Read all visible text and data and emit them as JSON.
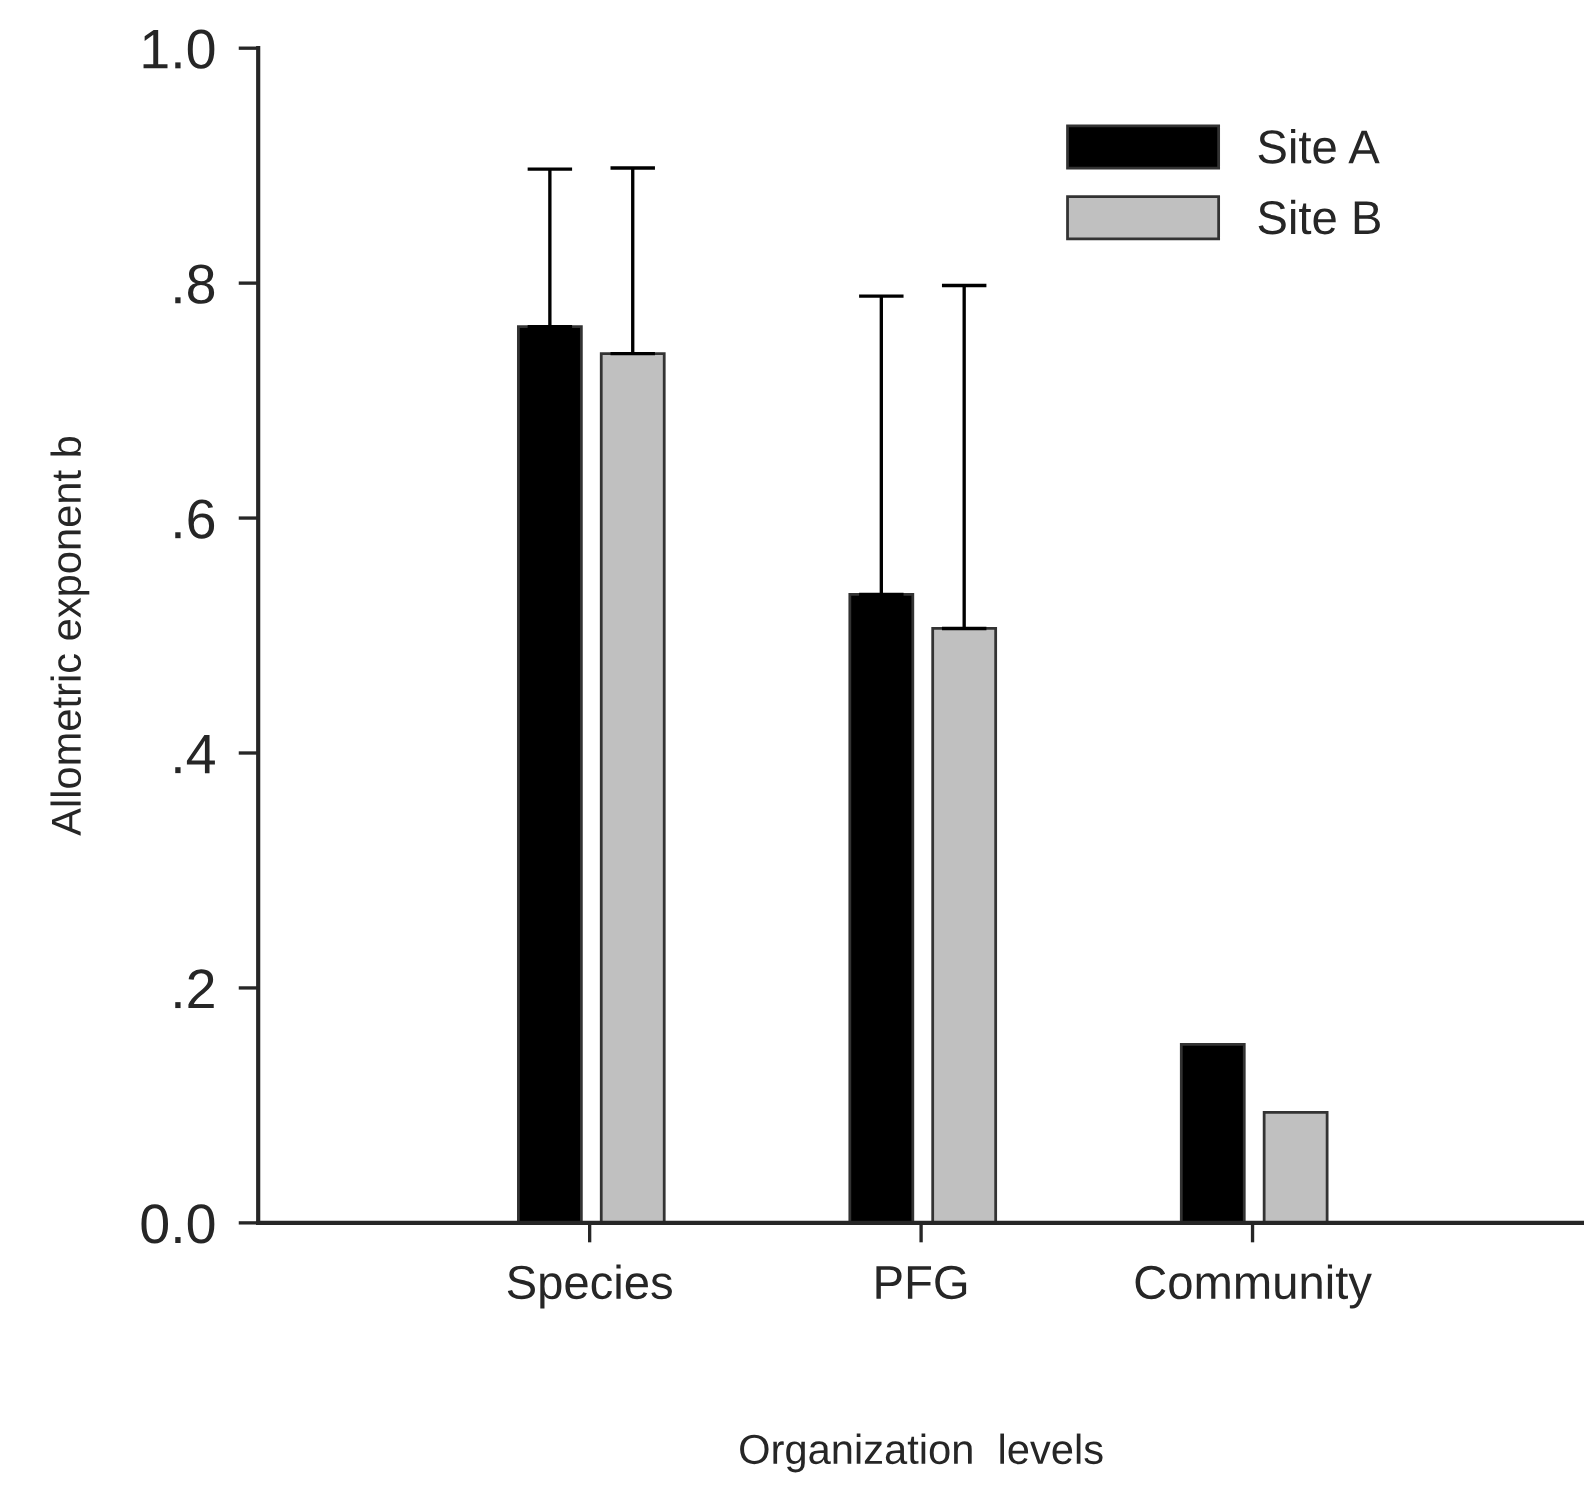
{
  "chart_data": {
    "type": "bar",
    "xlabel": "Organization  levels",
    "ylabel": "Allometric exponent b",
    "categories": [
      "Species",
      "PFG",
      "Community"
    ],
    "series": [
      {
        "name": "Site A",
        "color": "#000000",
        "values": [
          0.763,
          0.535,
          0.152
        ],
        "errors": [
          [
            0.763,
            0.897
          ],
          [
            0.535,
            0.789
          ],
          null
        ]
      },
      {
        "name": "Site B",
        "color": "#c0c0c0",
        "values": [
          0.74,
          0.506,
          0.094
        ],
        "errors": [
          [
            0.74,
            0.898
          ],
          [
            0.506,
            0.798
          ],
          null
        ]
      }
    ],
    "ylim": [
      0,
      1.0
    ],
    "yticks": [
      {
        "value": 0,
        "label": "0.0"
      },
      {
        "value": 0.2,
        "label": ".2"
      },
      {
        "value": 0.4,
        "label": ".4"
      },
      {
        "value": 0.6,
        "label": ".6"
      },
      {
        "value": 0.8,
        "label": ".8"
      },
      {
        "value": 1.0,
        "label": "1.0"
      }
    ],
    "grid": false,
    "legend": "top right"
  }
}
